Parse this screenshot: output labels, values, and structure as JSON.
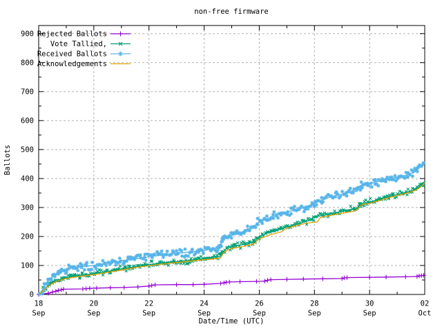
{
  "window": {
    "title": "non-free firmware"
  },
  "chart_data": {
    "type": "line",
    "title": "non-free firmware",
    "xlabel": "Date/Time (UTC)",
    "ylabel": "Ballots",
    "ylim": [
      0,
      928
    ],
    "y_major_step": 100,
    "y_minor_step": 50,
    "x_range_days": 14,
    "x_minor_step_days": 1,
    "grid": "dashed-major-both-axes",
    "legend_position": "top-left-inside",
    "y_ticks": [
      0,
      100,
      200,
      300,
      400,
      500,
      600,
      700,
      800,
      900
    ],
    "x_ticks": [
      {
        "day": 0,
        "line1": "18",
        "line2": "Sep"
      },
      {
        "day": 2,
        "line1": "20",
        "line2": "Sep"
      },
      {
        "day": 4,
        "line1": "22",
        "line2": "Sep"
      },
      {
        "day": 6,
        "line1": "24",
        "line2": "Sep"
      },
      {
        "day": 8,
        "line1": "26",
        "line2": "Sep"
      },
      {
        "day": 10,
        "line1": "28",
        "line2": "Sep"
      },
      {
        "day": 12,
        "line1": "30",
        "line2": "Sep"
      },
      {
        "day": 14,
        "line1": "02",
        "line2": "Oct"
      }
    ],
    "series": [
      {
        "name": "Rejected Ballots",
        "color": "#9400D3",
        "marker": "plus",
        "dense_markers": false,
        "points": [
          [
            0,
            0
          ],
          [
            0.35,
            4
          ],
          [
            0.5,
            8
          ],
          [
            0.62,
            11
          ],
          [
            0.72,
            14
          ],
          [
            0.82,
            16
          ],
          [
            0.9,
            18
          ],
          [
            1.6,
            19
          ],
          [
            1.72,
            20
          ],
          [
            1.85,
            21
          ],
          [
            2.1,
            22
          ],
          [
            2.6,
            23
          ],
          [
            3.1,
            24
          ],
          [
            3.6,
            26
          ],
          [
            4.0,
            29
          ],
          [
            4.1,
            31
          ],
          [
            4.22,
            33
          ],
          [
            5.0,
            34
          ],
          [
            5.6,
            34
          ],
          [
            6.0,
            35
          ],
          [
            6.6,
            38
          ],
          [
            6.72,
            40
          ],
          [
            6.8,
            42
          ],
          [
            6.92,
            43
          ],
          [
            7.3,
            44
          ],
          [
            7.9,
            45
          ],
          [
            8.2,
            46
          ],
          [
            8.3,
            49
          ],
          [
            8.42,
            51
          ],
          [
            9.0,
            52
          ],
          [
            9.6,
            53
          ],
          [
            10.3,
            54
          ],
          [
            11.0,
            55
          ],
          [
            11.08,
            57
          ],
          [
            11.18,
            58
          ],
          [
            12.0,
            59
          ],
          [
            12.6,
            60
          ],
          [
            13.3,
            61
          ],
          [
            13.72,
            62
          ],
          [
            13.8,
            64
          ],
          [
            13.88,
            65
          ],
          [
            14.0,
            66
          ]
        ]
      },
      {
        "name": "Vote Tallied,",
        "color": "#009E73",
        "marker": "cross",
        "dense_markers": true,
        "points": [
          [
            0,
            0
          ],
          [
            0.1,
            8
          ],
          [
            0.2,
            18
          ],
          [
            0.35,
            30
          ],
          [
            0.5,
            40
          ],
          [
            0.7,
            50
          ],
          [
            1.0,
            58
          ],
          [
            1.3,
            63
          ],
          [
            1.6,
            67
          ],
          [
            2.0,
            72
          ],
          [
            2.4,
            78
          ],
          [
            2.8,
            85
          ],
          [
            3.2,
            91
          ],
          [
            3.6,
            97
          ],
          [
            4.0,
            103
          ],
          [
            4.5,
            109
          ],
          [
            5.0,
            113
          ],
          [
            5.5,
            118
          ],
          [
            6.0,
            124
          ],
          [
            6.3,
            128
          ],
          [
            6.6,
            131
          ],
          [
            6.7,
            148
          ],
          [
            6.85,
            161
          ],
          [
            7.1,
            167
          ],
          [
            7.4,
            172
          ],
          [
            7.7,
            178
          ],
          [
            7.85,
            183
          ],
          [
            8.0,
            200
          ],
          [
            8.3,
            212
          ],
          [
            8.6,
            221
          ],
          [
            9.0,
            234
          ],
          [
            9.4,
            243
          ],
          [
            9.8,
            255
          ],
          [
            10.0,
            267
          ],
          [
            10.4,
            275
          ],
          [
            10.8,
            283
          ],
          [
            11.2,
            291
          ],
          [
            11.55,
            297
          ],
          [
            11.7,
            313
          ],
          [
            12.0,
            318
          ],
          [
            12.4,
            330
          ],
          [
            12.8,
            340
          ],
          [
            13.2,
            350
          ],
          [
            13.5,
            357
          ],
          [
            13.8,
            371
          ],
          [
            14.0,
            390
          ]
        ]
      },
      {
        "name": "Received Ballots",
        "color": "#56B4E9",
        "marker": "asterisk",
        "dense_markers": true,
        "points": [
          [
            0,
            0
          ],
          [
            0.08,
            6
          ],
          [
            0.15,
            18
          ],
          [
            0.25,
            34
          ],
          [
            0.35,
            48
          ],
          [
            0.5,
            60
          ],
          [
            0.65,
            70
          ],
          [
            0.8,
            78
          ],
          [
            1.0,
            86
          ],
          [
            1.2,
            91
          ],
          [
            1.5,
            95
          ],
          [
            2.0,
            100
          ],
          [
            2.3,
            105
          ],
          [
            2.6,
            110
          ],
          [
            3.0,
            116
          ],
          [
            3.5,
            123
          ],
          [
            4.0,
            130
          ],
          [
            4.5,
            136
          ],
          [
            5.0,
            141
          ],
          [
            5.5,
            147
          ],
          [
            6.0,
            152
          ],
          [
            6.3,
            157
          ],
          [
            6.55,
            162
          ],
          [
            6.63,
            178
          ],
          [
            6.72,
            193
          ],
          [
            6.85,
            199
          ],
          [
            7.0,
            203
          ],
          [
            7.2,
            210
          ],
          [
            7.45,
            218
          ],
          [
            7.6,
            226
          ],
          [
            7.75,
            230
          ],
          [
            8.0,
            250
          ],
          [
            8.3,
            262
          ],
          [
            8.6,
            272
          ],
          [
            9.0,
            285
          ],
          [
            9.3,
            291
          ],
          [
            9.6,
            299
          ],
          [
            10.0,
            315
          ],
          [
            10.3,
            327
          ],
          [
            10.6,
            337
          ],
          [
            11.0,
            346
          ],
          [
            11.3,
            352
          ],
          [
            11.55,
            357
          ],
          [
            11.7,
            375
          ],
          [
            12.0,
            383
          ],
          [
            12.3,
            390
          ],
          [
            12.6,
            397
          ],
          [
            13.0,
            404
          ],
          [
            13.3,
            411
          ],
          [
            13.6,
            421
          ],
          [
            13.8,
            436
          ],
          [
            14.0,
            453
          ]
        ]
      },
      {
        "name": "Acknowledgements",
        "color": "#E69F00",
        "marker": "none",
        "dense_markers": false,
        "points": [
          [
            0,
            0
          ],
          [
            0.15,
            12
          ],
          [
            0.3,
            24
          ],
          [
            0.5,
            38
          ],
          [
            0.7,
            47
          ],
          [
            1.0,
            55
          ],
          [
            1.4,
            61
          ],
          [
            1.8,
            66
          ],
          [
            2.0,
            68
          ],
          [
            2.5,
            76
          ],
          [
            3.0,
            84
          ],
          [
            3.5,
            93
          ],
          [
            4.0,
            99
          ],
          [
            4.5,
            105
          ],
          [
            5.0,
            110
          ],
          [
            5.5,
            115
          ],
          [
            6.0,
            120
          ],
          [
            6.4,
            123
          ],
          [
            6.6,
            126
          ],
          [
            6.7,
            144
          ],
          [
            6.9,
            156
          ],
          [
            7.2,
            162
          ],
          [
            7.5,
            167
          ],
          [
            7.8,
            174
          ],
          [
            8.0,
            192
          ],
          [
            8.4,
            206
          ],
          [
            8.8,
            216
          ],
          [
            8.95,
            227
          ],
          [
            9.3,
            236
          ],
          [
            9.7,
            246
          ],
          [
            10.1,
            250
          ],
          [
            10.22,
            266
          ],
          [
            10.6,
            273
          ],
          [
            11.0,
            280
          ],
          [
            11.4,
            287
          ],
          [
            11.55,
            292
          ],
          [
            11.7,
            309
          ],
          [
            12.0,
            314
          ],
          [
            12.4,
            325
          ],
          [
            12.8,
            336
          ],
          [
            13.2,
            346
          ],
          [
            13.5,
            354
          ],
          [
            13.7,
            361
          ],
          [
            13.85,
            371
          ],
          [
            14.0,
            385
          ]
        ]
      }
    ]
  },
  "style": {
    "background": "#FFFFFF",
    "axis_color": "#000000",
    "grid_color": "#B0B0B0",
    "text_color": "#000000"
  }
}
